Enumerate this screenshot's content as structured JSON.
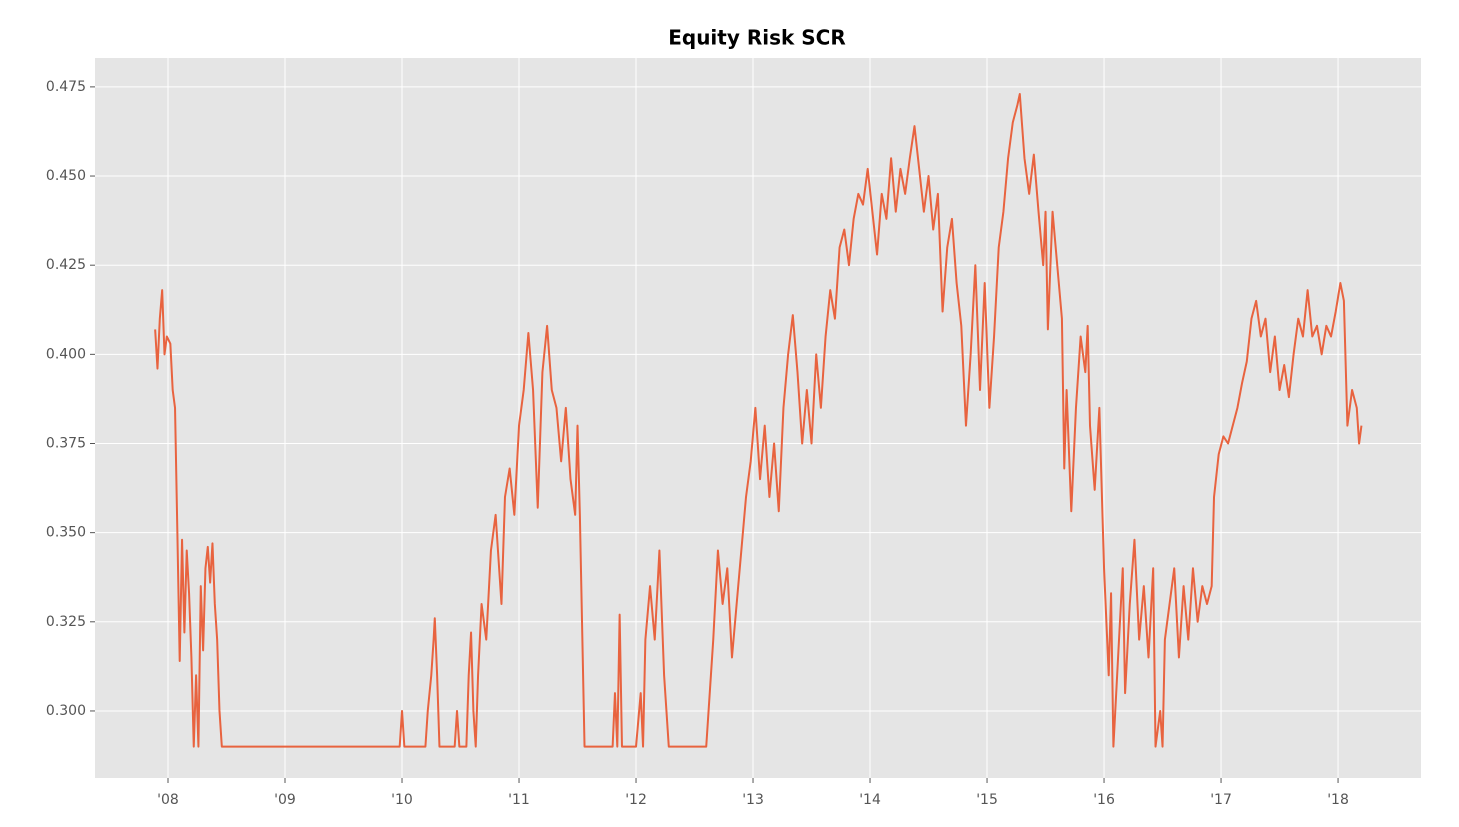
{
  "chart_data": {
    "type": "line",
    "title": "Equity Risk SCR",
    "x": [
      2007.89,
      2007.91,
      2007.93,
      2007.95,
      2007.97,
      2007.99,
      2008.02,
      2008.04,
      2008.06,
      2008.08,
      2008.1,
      2008.12,
      2008.14,
      2008.16,
      2008.18,
      2008.2,
      2008.22,
      2008.24,
      2008.26,
      2008.28,
      2008.3,
      2008.32,
      2008.34,
      2008.36,
      2008.38,
      2008.4,
      2008.42,
      2008.44,
      2008.46,
      2009.98,
      2010.0,
      2010.02,
      2010.06,
      2010.2,
      2010.22,
      2010.25,
      2010.27,
      2010.28,
      2010.3,
      2010.32,
      2010.45,
      2010.47,
      2010.49,
      2010.55,
      2010.57,
      2010.59,
      2010.61,
      2010.63,
      2010.65,
      2010.68,
      2010.72,
      2010.76,
      2010.8,
      2010.83,
      2010.85,
      2010.88,
      2010.92,
      2010.96,
      2011.0,
      2011.04,
      2011.08,
      2011.12,
      2011.16,
      2011.2,
      2011.24,
      2011.28,
      2011.32,
      2011.36,
      2011.4,
      2011.44,
      2011.48,
      2011.5,
      2011.52,
      2011.56,
      2011.8,
      2011.82,
      2011.84,
      2011.86,
      2011.88,
      2012.0,
      2012.04,
      2012.06,
      2012.08,
      2012.12,
      2012.16,
      2012.2,
      2012.24,
      2012.28,
      2012.3,
      2012.6,
      2012.62,
      2012.66,
      2012.7,
      2012.74,
      2012.78,
      2012.82,
      2012.86,
      2012.9,
      2012.94,
      2012.98,
      2013.02,
      2013.06,
      2013.1,
      2013.14,
      2013.18,
      2013.22,
      2013.26,
      2013.3,
      2013.34,
      2013.38,
      2013.42,
      2013.46,
      2013.5,
      2013.54,
      2013.58,
      2013.62,
      2013.66,
      2013.7,
      2013.74,
      2013.78,
      2013.82,
      2013.86,
      2013.9,
      2013.94,
      2013.98,
      2014.02,
      2014.06,
      2014.1,
      2014.14,
      2014.18,
      2014.22,
      2014.26,
      2014.3,
      2014.34,
      2014.38,
      2014.42,
      2014.46,
      2014.5,
      2014.54,
      2014.58,
      2014.62,
      2014.66,
      2014.7,
      2014.74,
      2014.78,
      2014.82,
      2014.86,
      2014.9,
      2014.94,
      2014.98,
      2015.02,
      2015.06,
      2015.1,
      2015.14,
      2015.18,
      2015.22,
      2015.26,
      2015.28,
      2015.32,
      2015.36,
      2015.4,
      2015.44,
      2015.48,
      2015.5,
      2015.52,
      2015.56,
      2015.6,
      2015.64,
      2015.66,
      2015.68,
      2015.72,
      2015.76,
      2015.8,
      2015.84,
      2015.86,
      2015.88,
      2015.92,
      2015.96,
      2016.0,
      2016.04,
      2016.06,
      2016.08,
      2016.12,
      2016.16,
      2016.18,
      2016.22,
      2016.26,
      2016.3,
      2016.34,
      2016.38,
      2016.42,
      2016.44,
      2016.48,
      2016.5,
      2016.52,
      2016.56,
      2016.6,
      2016.64,
      2016.68,
      2016.72,
      2016.76,
      2016.8,
      2016.84,
      2016.88,
      2016.92,
      2016.94,
      2016.98,
      2017.02,
      2017.06,
      2017.1,
      2017.14,
      2017.18,
      2017.22,
      2017.26,
      2017.3,
      2017.34,
      2017.38,
      2017.42,
      2017.46,
      2017.5,
      2017.54,
      2017.58,
      2017.62,
      2017.66,
      2017.7,
      2017.74,
      2017.78,
      2017.82,
      2017.86,
      2017.9,
      2017.94,
      2017.98,
      2018.02,
      2018.05,
      2018.08,
      2018.12,
      2018.16,
      2018.18,
      2018.2
    ],
    "series": [
      {
        "color": "#e8633f",
        "values": [
          0.407,
          0.396,
          0.41,
          0.418,
          0.4,
          0.405,
          0.403,
          0.39,
          0.385,
          0.35,
          0.314,
          0.348,
          0.322,
          0.345,
          0.333,
          0.315,
          0.29,
          0.31,
          0.29,
          0.335,
          0.317,
          0.34,
          0.346,
          0.336,
          0.347,
          0.33,
          0.32,
          0.3,
          0.29,
          0.29,
          0.3,
          0.29,
          0.29,
          0.29,
          0.3,
          0.31,
          0.32,
          0.326,
          0.31,
          0.29,
          0.29,
          0.3,
          0.29,
          0.29,
          0.31,
          0.322,
          0.3,
          0.29,
          0.31,
          0.33,
          0.32,
          0.345,
          0.355,
          0.34,
          0.33,
          0.36,
          0.368,
          0.355,
          0.38,
          0.39,
          0.406,
          0.39,
          0.357,
          0.395,
          0.408,
          0.39,
          0.385,
          0.37,
          0.385,
          0.365,
          0.355,
          0.38,
          0.355,
          0.29,
          0.29,
          0.305,
          0.29,
          0.327,
          0.29,
          0.29,
          0.305,
          0.29,
          0.32,
          0.335,
          0.32,
          0.345,
          0.31,
          0.29,
          0.29,
          0.29,
          0.3,
          0.32,
          0.345,
          0.33,
          0.34,
          0.315,
          0.33,
          0.345,
          0.36,
          0.37,
          0.385,
          0.365,
          0.38,
          0.36,
          0.375,
          0.356,
          0.385,
          0.4,
          0.411,
          0.395,
          0.375,
          0.39,
          0.375,
          0.4,
          0.385,
          0.405,
          0.418,
          0.41,
          0.43,
          0.435,
          0.425,
          0.438,
          0.445,
          0.442,
          0.452,
          0.44,
          0.428,
          0.445,
          0.438,
          0.455,
          0.44,
          0.452,
          0.445,
          0.455,
          0.464,
          0.452,
          0.44,
          0.45,
          0.435,
          0.445,
          0.412,
          0.43,
          0.438,
          0.42,
          0.408,
          0.38,
          0.4,
          0.425,
          0.39,
          0.42,
          0.385,
          0.405,
          0.43,
          0.44,
          0.455,
          0.465,
          0.47,
          0.473,
          0.455,
          0.445,
          0.456,
          0.44,
          0.425,
          0.44,
          0.407,
          0.44,
          0.425,
          0.41,
          0.368,
          0.39,
          0.356,
          0.385,
          0.405,
          0.395,
          0.408,
          0.38,
          0.362,
          0.385,
          0.34,
          0.31,
          0.333,
          0.29,
          0.315,
          0.34,
          0.305,
          0.33,
          0.348,
          0.32,
          0.335,
          0.315,
          0.34,
          0.29,
          0.3,
          0.29,
          0.32,
          0.33,
          0.34,
          0.315,
          0.335,
          0.32,
          0.34,
          0.325,
          0.335,
          0.33,
          0.335,
          0.36,
          0.372,
          0.377,
          0.375,
          0.38,
          0.385,
          0.392,
          0.398,
          0.41,
          0.415,
          0.405,
          0.41,
          0.395,
          0.405,
          0.39,
          0.397,
          0.388,
          0.4,
          0.41,
          0.405,
          0.418,
          0.405,
          0.408,
          0.4,
          0.408,
          0.405,
          0.412,
          0.42,
          0.415,
          0.38,
          0.39,
          0.385,
          0.375,
          0.38
        ]
      }
    ],
    "xlim": [
      2007.376,
      2018.709
    ],
    "xticks": [
      {
        "value": 2008,
        "label": "'08"
      },
      {
        "value": 2009,
        "label": "'09"
      },
      {
        "value": 2010,
        "label": "'10"
      },
      {
        "value": 2011,
        "label": "'11"
      },
      {
        "value": 2012,
        "label": "'12"
      },
      {
        "value": 2013,
        "label": "'13"
      },
      {
        "value": 2014,
        "label": "'14"
      },
      {
        "value": 2015,
        "label": "'15"
      },
      {
        "value": 2016,
        "label": "'16"
      },
      {
        "value": 2017,
        "label": "'17"
      },
      {
        "value": 2018,
        "label": "'18"
      }
    ],
    "ylim": [
      0.2812,
      0.4831
    ],
    "yticks": [
      {
        "value": 0.3,
        "label": "0.300"
      },
      {
        "value": 0.325,
        "label": "0.325"
      },
      {
        "value": 0.35,
        "label": "0.350"
      },
      {
        "value": 0.375,
        "label": "0.375"
      },
      {
        "value": 0.4,
        "label": "0.400"
      },
      {
        "value": 0.425,
        "label": "0.425"
      },
      {
        "value": 0.45,
        "label": "0.450"
      },
      {
        "value": 0.475,
        "label": "0.475"
      }
    ],
    "grid": true
  }
}
